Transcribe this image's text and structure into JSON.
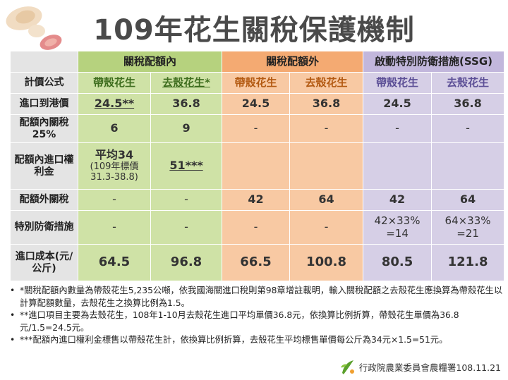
{
  "title": "109年花生關稅保護機制",
  "table": {
    "group_headers": [
      "關稅配額內",
      "關稅配額外",
      "啟動特別防衛措施(SSG)"
    ],
    "rows": [
      {
        "label": "計價公式",
        "cells": [
          "帶殼花生",
          "去殼花生*",
          "帶殼花生",
          "去殼花生",
          "帶殼花生",
          "去殼花生"
        ]
      },
      {
        "label": "進口到港價",
        "cells": [
          "24.5**",
          "36.8",
          "24.5",
          "36.8",
          "24.5",
          "36.8"
        ]
      },
      {
        "label": "配額內關稅25%",
        "cells": [
          "6",
          "9",
          "-",
          "-",
          "-",
          "-"
        ]
      },
      {
        "label": "配額內進口權利金",
        "cells": [
          "平均34",
          "(109年標價",
          "31.3-38.8)",
          "51***",
          "",
          ""
        ]
      },
      {
        "label": "配額外關稅",
        "cells": [
          "-",
          "-",
          "42",
          "64",
          "42",
          "64"
        ]
      },
      {
        "label": "特別防衛措施",
        "cells": [
          "-",
          "-",
          "-",
          "-",
          "42×33%",
          "=14",
          "64×33%",
          "=21"
        ]
      },
      {
        "label": "進口成本(元/公斤)",
        "cells": [
          "64.5",
          "96.8",
          "66.5",
          "100.8",
          "80.5",
          "121.8"
        ]
      }
    ]
  },
  "notes": [
    "*關稅配額內數量為帶殼花生5,235公噸，依我國海關進口稅則第98章增註載明，輸入關稅配額之去殼花生應換算為帶殼花生以計算配額數量，去殼花生之換算比例為1.5。",
    "**進口項目主要為去殼花生，108年1-10月去殼花生進口平均單價36.8元，依換算比例折算，帶殼花生單價為36.8元/1.5=24.5元。",
    "***配額內進口權利金標售以帶殼花生計，依換算比例折算，去殼花生平均標售單價每公斤為34元×1.5=51元。"
  ],
  "footer": "行政院農業委員會農糧署108.11.21",
  "colors": {
    "green_header": "#b6d27e",
    "green_cell": "#cfe2a6",
    "orange_header": "#f4aa72",
    "orange_cell": "#f8c9a3",
    "purple_header": "#c2b7dc",
    "purple_cell": "#d6cfe6",
    "row_header": "#e4e4e4"
  },
  "icons": [
    "peanut-icon",
    "agency-logo-icon"
  ]
}
